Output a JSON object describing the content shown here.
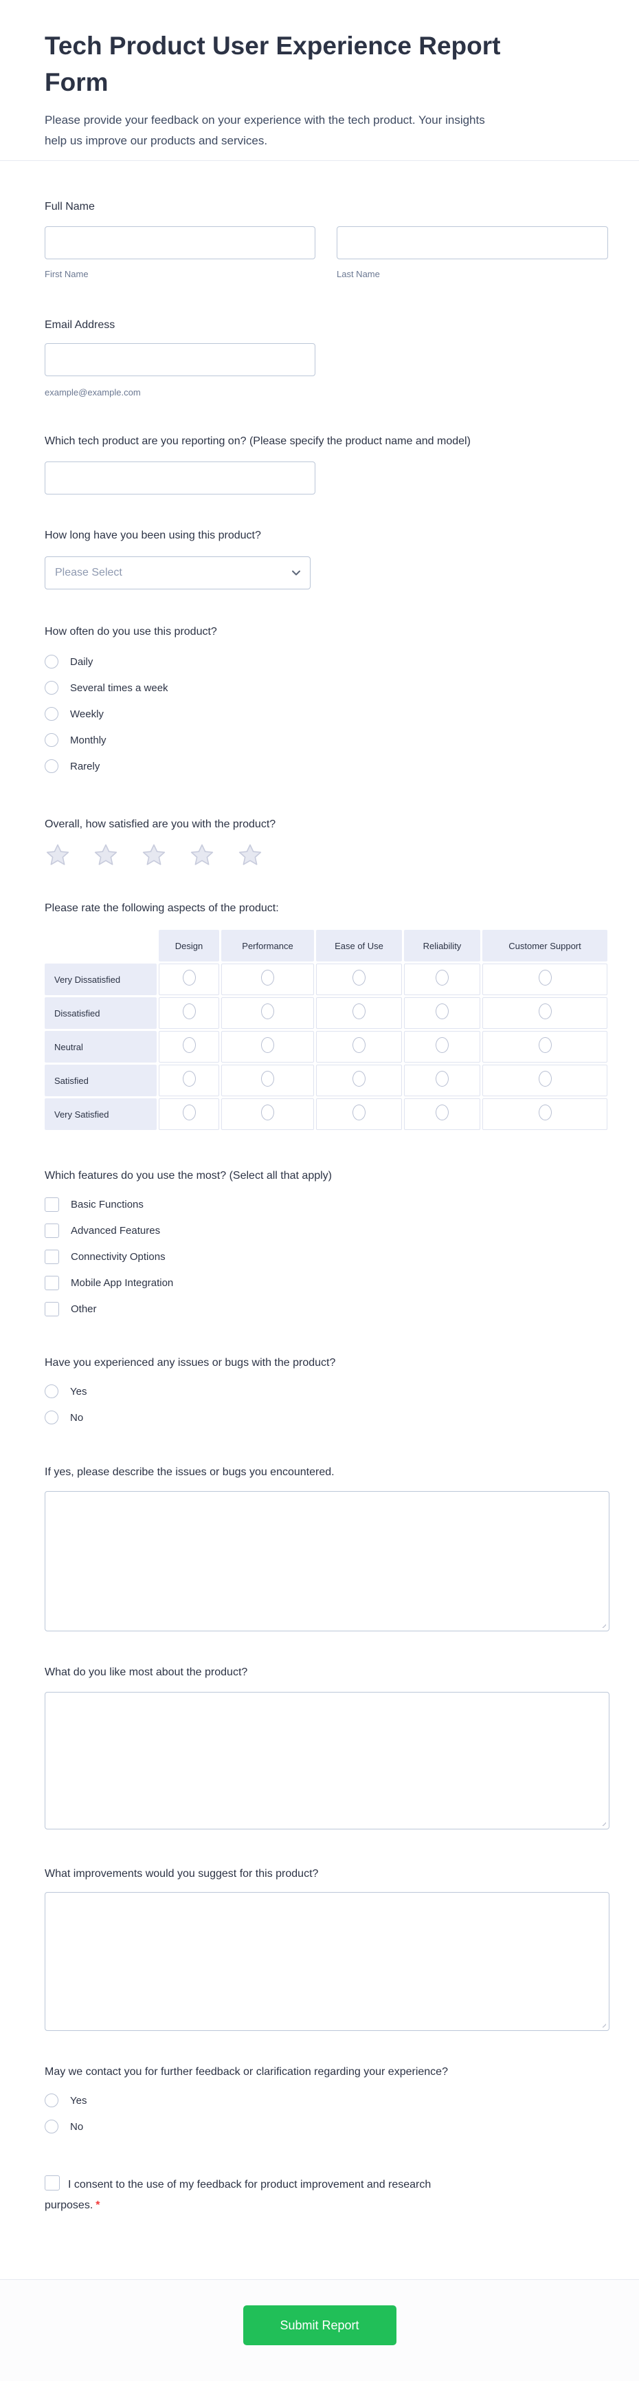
{
  "header": {
    "title": "Tech Product User Experience Report Form",
    "subtitle": "Please provide your feedback on your experience with the tech product. Your insights help us improve our products and services."
  },
  "fields": {
    "full_name": {
      "label": "Full Name",
      "first_sublabel": "First Name",
      "last_sublabel": "Last Name",
      "first_value": "",
      "last_value": ""
    },
    "email": {
      "label": "Email Address",
      "sublabel": "example@example.com",
      "value": ""
    },
    "product": {
      "label": "Which tech product are you reporting on? (Please specify the product name and model)",
      "value": ""
    },
    "duration": {
      "label": "How long have you been using this product?",
      "placeholder": "Please Select"
    },
    "frequency": {
      "label": "How often do you use this product?",
      "options": [
        "Daily",
        "Several times a week",
        "Weekly",
        "Monthly",
        "Rarely"
      ]
    },
    "satisfaction": {
      "label": "Overall, how satisfied are you with the product?",
      "stars": 5,
      "selected": 0
    },
    "aspects": {
      "label": "Please rate the following aspects of the product:",
      "columns": [
        "Design",
        "Performance",
        "Ease of Use",
        "Reliability",
        "Customer Support"
      ],
      "rows": [
        "Very Dissatisfied",
        "Dissatisfied",
        "Neutral",
        "Satisfied",
        "Very Satisfied"
      ]
    },
    "features": {
      "label": "Which features do you use the most? (Select all that apply)",
      "options": [
        "Basic Functions",
        "Advanced Features",
        "Connectivity Options",
        "Mobile App Integration",
        "Other"
      ]
    },
    "issues": {
      "label": "Have you experienced any issues or bugs with the product?",
      "options": [
        "Yes",
        "No"
      ]
    },
    "issues_description": {
      "label": "If yes, please describe the issues or bugs you encountered.",
      "value": ""
    },
    "like_most": {
      "label": "What do you like most about the product?",
      "value": ""
    },
    "improvements": {
      "label": "What improvements would you suggest for this product?",
      "value": ""
    },
    "contact": {
      "label": "May we contact you for further feedback or clarification regarding your experience?",
      "options": [
        "Yes",
        "No"
      ]
    },
    "consent": {
      "label": "I consent to the use of my feedback for product improvement and research purposes.",
      "required_mark": "*"
    }
  },
  "footer": {
    "submit_label": "Submit Report"
  },
  "colors": {
    "heading": "#2c3345",
    "accent_green": "#21bf58",
    "required_red": "#f23a3a",
    "table_cell_bg": "#e9ecf7",
    "input_border": "#bcc7d8",
    "star_fill": "#e6e8f1",
    "star_stroke": "#c7cbdc"
  }
}
